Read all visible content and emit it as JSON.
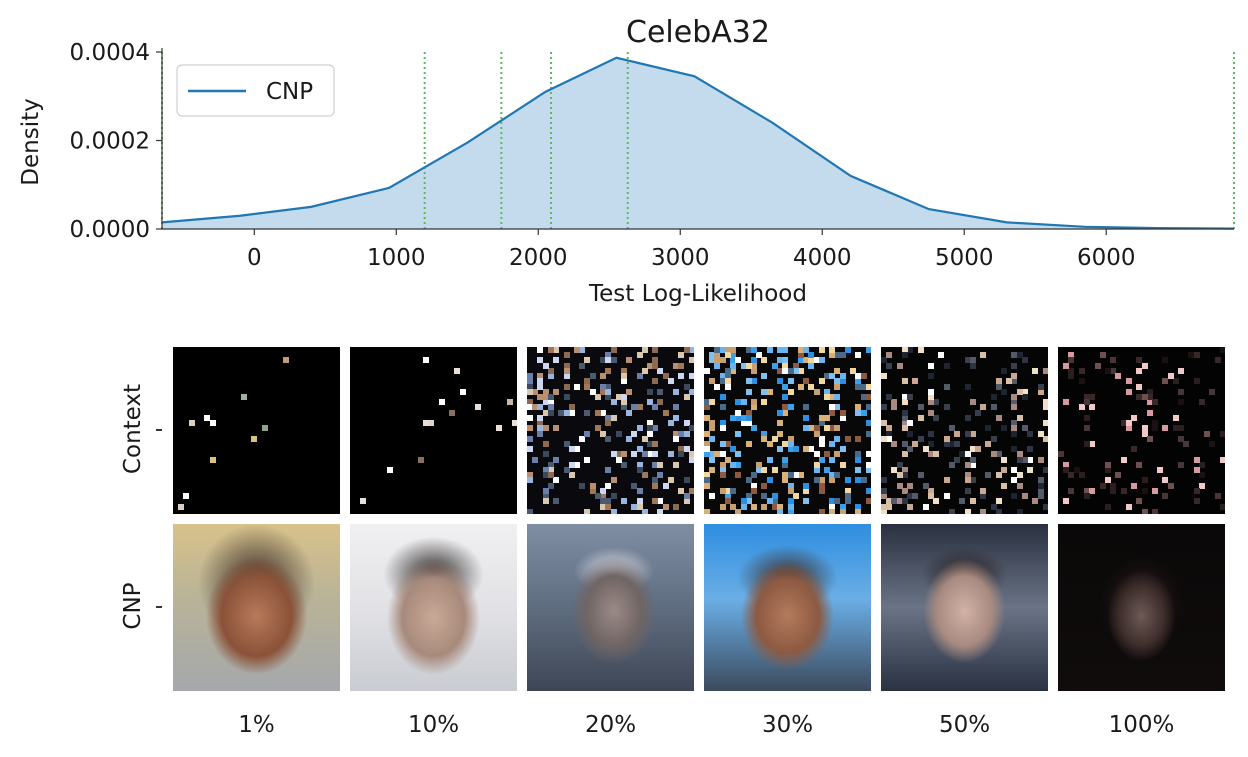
{
  "chart_data": {
    "type": "area",
    "title": "CelebA32",
    "xlabel": "Test Log-Likelihood",
    "ylabel": "Density",
    "xlim": [
      -650,
      6900
    ],
    "ylim": [
      0,
      0.0004
    ],
    "x_ticks": [
      0,
      1000,
      2000,
      3000,
      4000,
      5000,
      6000
    ],
    "x_tick_labels": [
      "0",
      "1000",
      "2000",
      "3000",
      "4000",
      "5000",
      "6000"
    ],
    "y_ticks": [
      0,
      0.0002,
      0.0004
    ],
    "y_tick_labels": [
      "0.0000",
      "0.0002",
      "0.0004"
    ],
    "legend": {
      "position": "top-left",
      "entries": [
        "CNP"
      ]
    },
    "series": [
      {
        "name": "CNP",
        "color": "#1f77b4",
        "fill": "#c4dbed",
        "x": [
          -650,
          -100,
          400,
          950,
          1500,
          2050,
          2550,
          3100,
          3650,
          4200,
          4750,
          5300,
          5850,
          6350,
          6900
        ],
        "y": [
          1.5e-05,
          3e-05,
          5e-05,
          9.3e-05,
          0.000195,
          0.00031,
          0.000387,
          0.000345,
          0.00024,
          0.00012,
          4.5e-05,
          1.5e-05,
          5e-06,
          2e-06,
          1e-06
        ]
      }
    ],
    "vlines": {
      "color": "#5cb85c",
      "style": "dotted",
      "x": [
        -650,
        1200,
        1740,
        2090,
        2630,
        6900
      ]
    },
    "grid": false
  },
  "image_grid": {
    "rows": [
      "Context",
      "CNP"
    ],
    "columns": [
      "1%",
      "10%",
      "20%",
      "30%",
      "50%",
      "100%"
    ]
  }
}
